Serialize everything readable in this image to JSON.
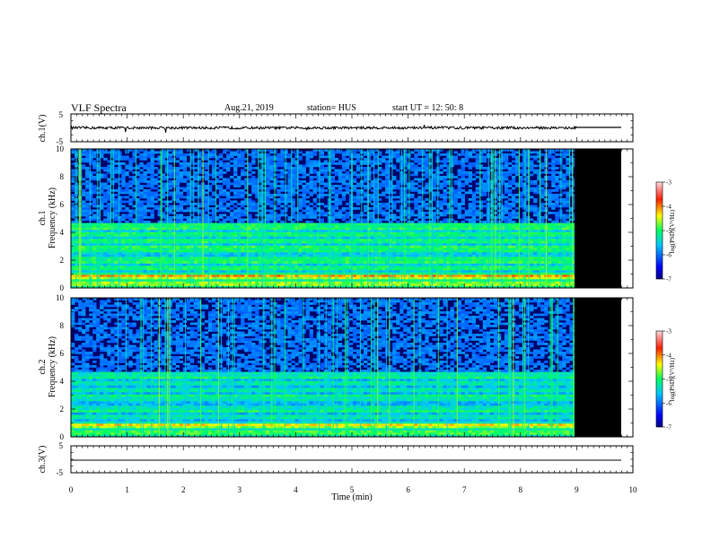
{
  "header": {
    "title": "VLF Spectra",
    "date": "Aug.21, 2019",
    "station": "station= HUS",
    "start_ut": "start  UT  =   12: 50: 8"
  },
  "chart_data": [
    {
      "type": "line",
      "name": "ch1-waveform",
      "ylabel": "ch.1(V)",
      "ylim": [
        -5,
        5
      ],
      "yticks": [
        "5",
        "-5"
      ],
      "xlim": [
        0,
        10
      ],
      "baseline_v": 0,
      "data_end_min": 9.0
    },
    {
      "type": "heatmap",
      "name": "ch1-spectrogram",
      "ylabel": "ch.1",
      "ylabel2": "Frequency  (kHz)",
      "ylim": [
        0,
        10
      ],
      "yticks": [
        "0",
        "2",
        "4",
        "6",
        "8",
        "10"
      ],
      "xlim": [
        0,
        10
      ],
      "data_end_min": 9.0,
      "colorbar": {
        "label": "log(PSD)(V²/Hz)",
        "range": [
          -7,
          -3
        ],
        "ticks": [
          "-3",
          "-4",
          "-5",
          "-6",
          "-7"
        ]
      }
    },
    {
      "type": "heatmap",
      "name": "ch2-spectrogram",
      "ylabel": "ch.2",
      "ylabel2": "Frequency  (kHz)",
      "ylim": [
        0,
        10
      ],
      "yticks": [
        "0",
        "2",
        "4",
        "6",
        "8",
        "10"
      ],
      "xlim": [
        0,
        10
      ],
      "data_end_min": 9.0,
      "colorbar": {
        "label": "log(PSD)(V²/Hz)",
        "range": [
          -7,
          -3
        ],
        "ticks": [
          "-3",
          "-4",
          "-5",
          "-6",
          "-7"
        ]
      }
    },
    {
      "type": "line",
      "name": "ch3-waveform",
      "ylabel": "ch.3(V)",
      "ylim": [
        -5,
        5
      ],
      "yticks": [
        "5",
        "-5"
      ],
      "xlim": [
        0,
        10
      ],
      "baseline_v": 0,
      "xlabel": "Time  (min)",
      "xticks": [
        "0",
        "1",
        "2",
        "3",
        "4",
        "5",
        "6",
        "7",
        "8",
        "9",
        "10"
      ]
    }
  ]
}
